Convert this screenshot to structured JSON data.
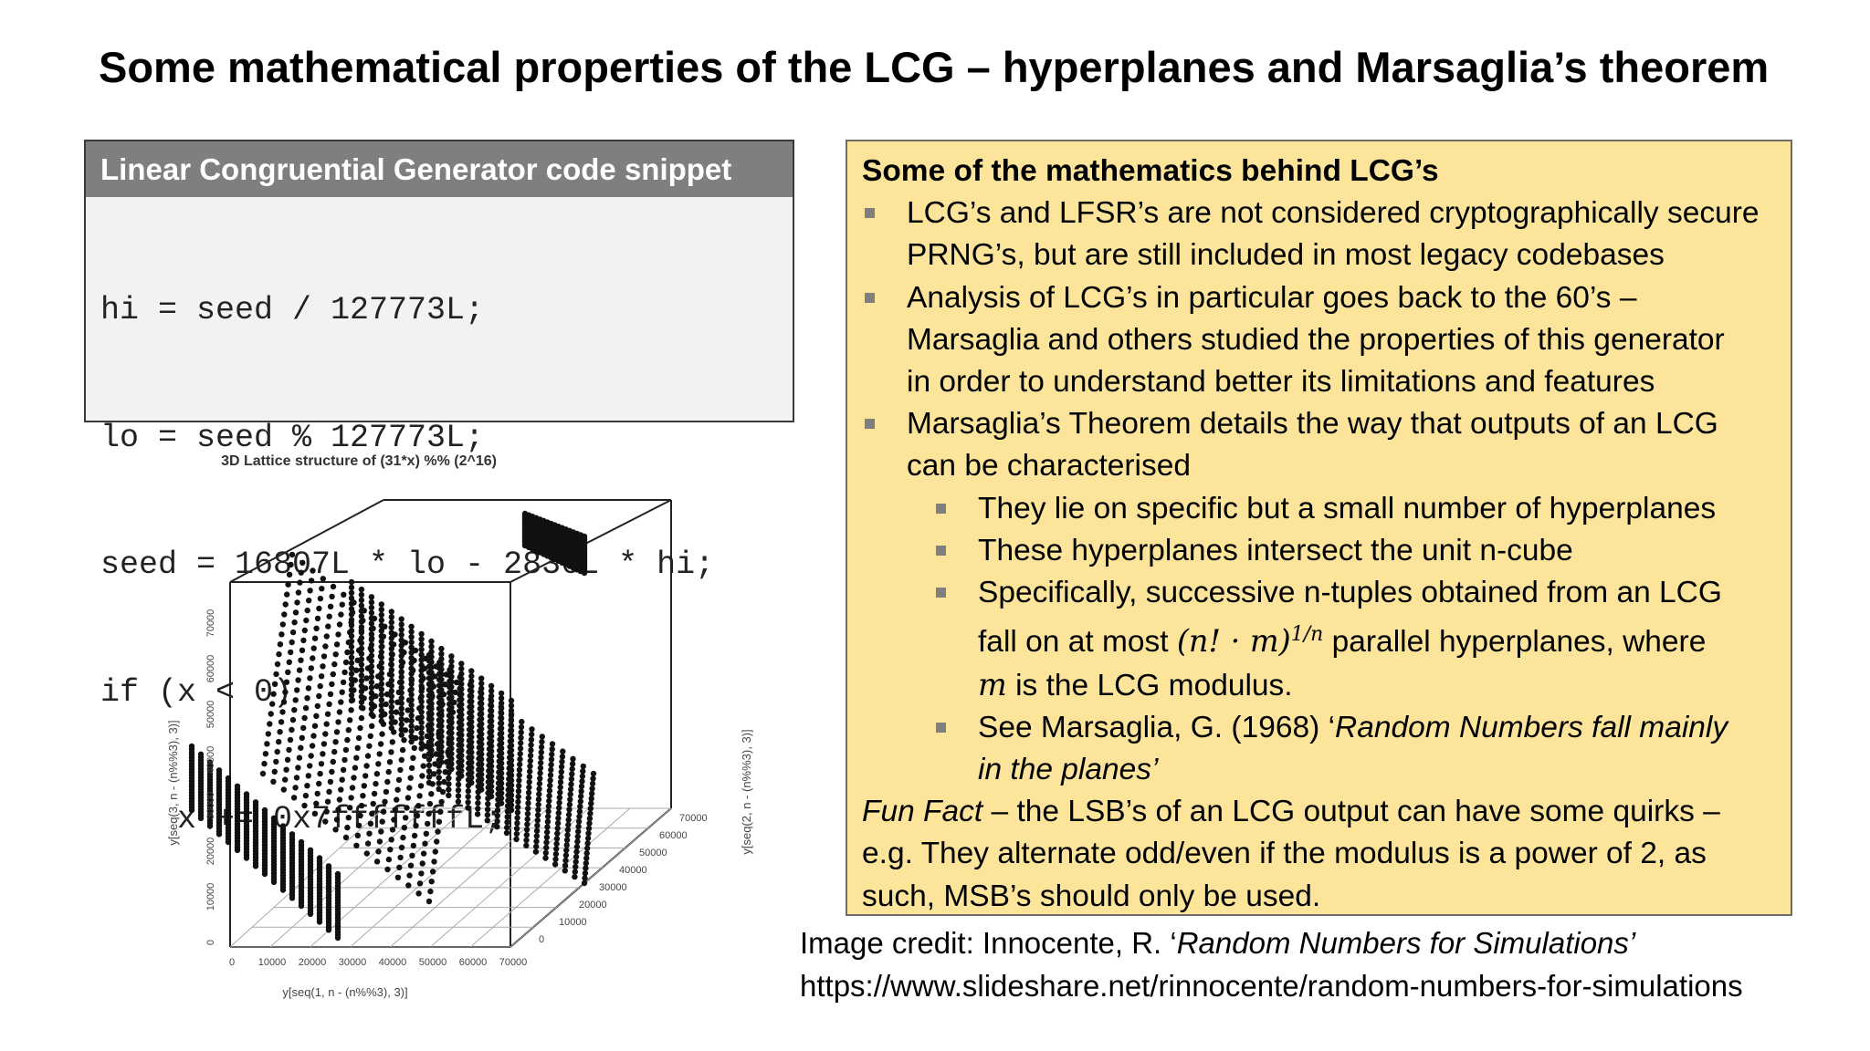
{
  "slide": {
    "title": "Some mathematical properties of the LCG – hyperplanes and Marsaglia’s theorem"
  },
  "code_box": {
    "header": "Linear Congruential Generator code snippet",
    "lines": [
      "hi = seed / 127773L;",
      "lo = seed % 127773L;",
      "seed = 16807L * lo - 2836L * hi;",
      "if (x < 0)",
      "    x += 0x7fffffffL;"
    ]
  },
  "figure": {
    "title": "3D Lattice structure of (31*x) %% (2^16)",
    "xlabel": "y[seq(1, n - (n%%3), 3)]",
    "ylabel": "y[seq(2, n - (n%%3), 3)]",
    "zlabel": "y[seq(3, n - (n%%3), 3)]",
    "xticks": [
      "0",
      "10000",
      "20000",
      "30000",
      "40000",
      "50000",
      "60000",
      "70000"
    ],
    "yticks": [
      "0",
      "10000",
      "20000",
      "30000",
      "40000",
      "50000",
      "60000",
      "70000"
    ],
    "zticks": [
      "0",
      "10000",
      "20000",
      "30000",
      "40000",
      "50000",
      "60000",
      "70000"
    ]
  },
  "info_box": {
    "heading": "Some of the mathematics behind LCG’s",
    "b1_l1": "LCG’s and LFSR’s are not considered cryptographically secure",
    "b1_l2": "PRNG’s, but are still included in most legacy codebases",
    "b2_l1": "Analysis of LCG’s in particular goes back to the 60’s –",
    "b2_l2": "Marsaglia and others studied the properties of this generator",
    "b2_l3": "in order to understand better its limitations and features",
    "b3_l1": "Marsaglia’s Theorem details the way that outputs of an LCG",
    "b3_l2": "can be characterised",
    "s1": "They lie on specific but a small number of hyperplanes",
    "s2": "These hyperplanes intersect the unit n-cube",
    "s3_l1": "Specifically, successive n-tuples obtained from an LCG",
    "s3_l2_pre": "fall on at most",
    "s3_math": "(n! · m)",
    "s3_exp": "1/n",
    "s3_l2_post": "parallel hyperplanes, where",
    "s3_m": "m",
    "s3_l3": "is the LCG modulus.",
    "s4_pre": "See Marsaglia, G. (1968) ‘",
    "s4_italic": "Random Numbers fall mainly",
    "s4_l2": "in the planes’",
    "fun_italic": "Fun Fact",
    "fun_l1": "– the LSB’s of an LCG output can have some quirks –",
    "fun_l2": "e.g. They alternate odd/even if the modulus is a power of 2, as",
    "fun_l3": "such, MSB’s should only be used."
  },
  "credit": {
    "prefix": "Image credit: Innocente, R. ‘",
    "italic": "Random Numbers for Simulations’",
    "url": "https://www.slideshare.net/rinnocente/random-numbers-for-simulations"
  }
}
